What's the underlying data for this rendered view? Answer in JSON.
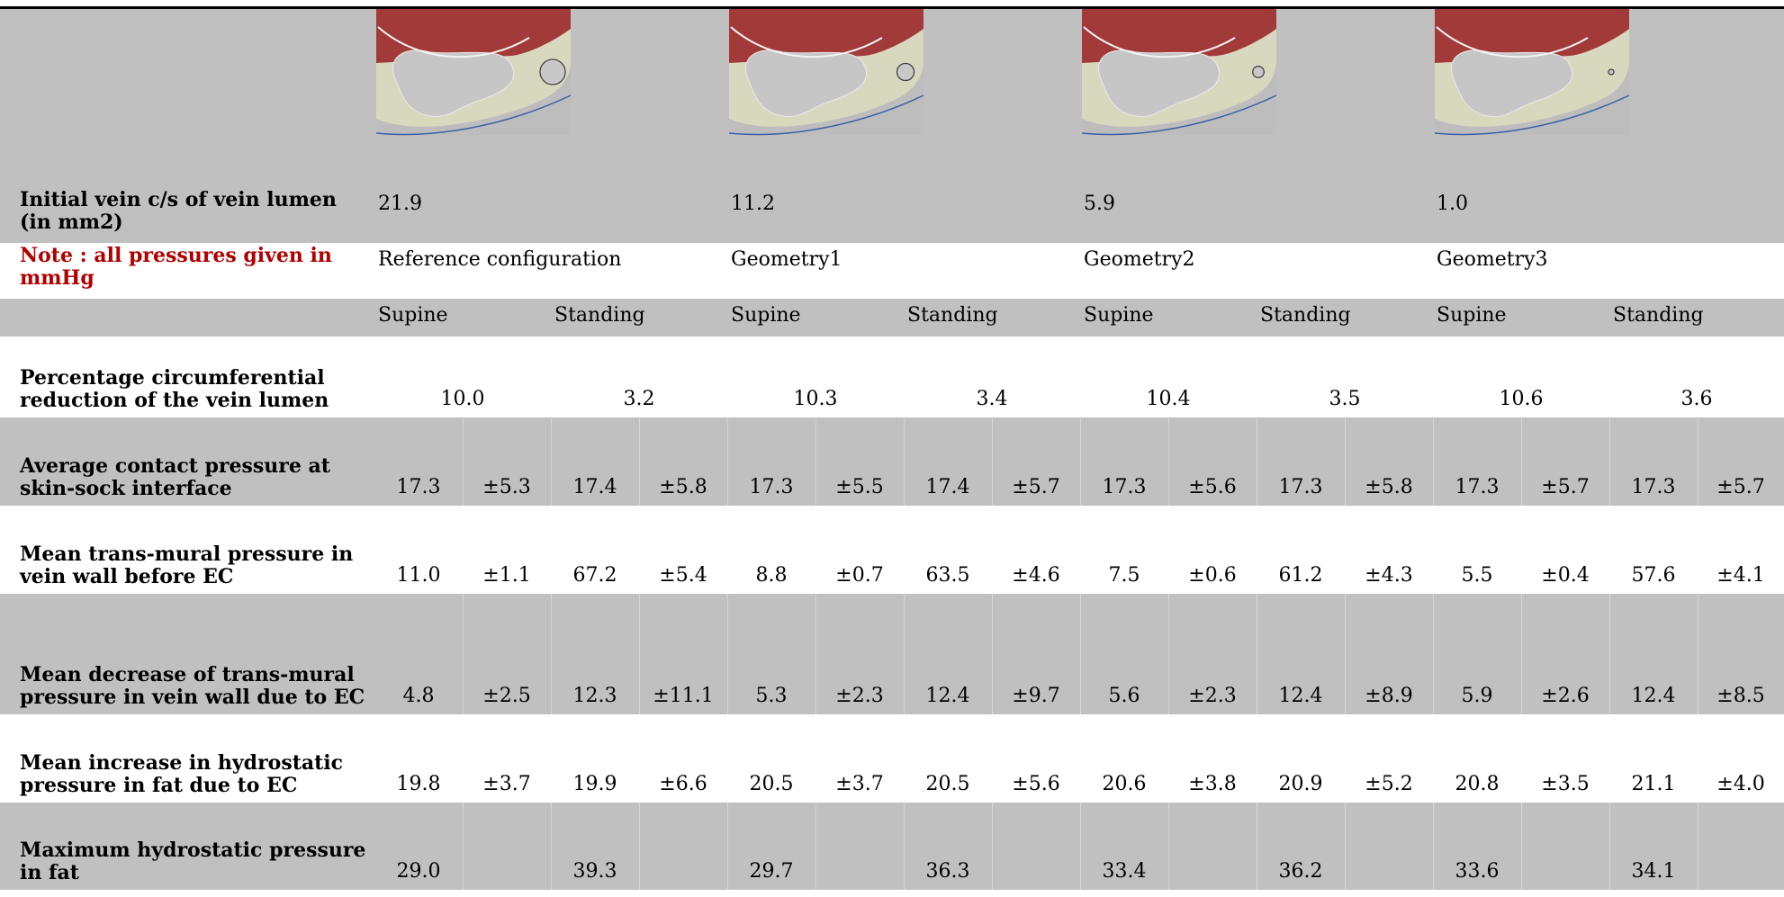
{
  "row_area": {
    "label": "Initial vein c/s of vein lumen (in mm2)",
    "values": [
      "21.9",
      "11.2",
      "5.9",
      "1.0"
    ]
  },
  "row_config": {
    "note": "Note : all pressures given in mmHg",
    "names": [
      "Reference configuration",
      "Geometry1",
      "Geometry2",
      "Geometry3"
    ]
  },
  "row_posture": {
    "supine": "Supine",
    "standing": "Standing"
  },
  "row_circ": {
    "label": "Percentage circumferential reduction of the vein lumen",
    "values": [
      "10.0",
      "3.2",
      "10.3",
      "3.4",
      "10.4",
      "3.5",
      "10.6",
      "3.6"
    ]
  },
  "row_contact": {
    "label": "Average contact pressure at skin-sock interface",
    "values": [
      "17.3",
      "±5.3",
      "17.4",
      "±5.8",
      "17.3",
      "±5.5",
      "17.4",
      "±5.7",
      "17.3",
      "±5.6",
      "17.3",
      "±5.8",
      "17.3",
      "±5.7",
      "17.3",
      "±5.7"
    ]
  },
  "row_transmural": {
    "label": "Mean trans-mural pressure in vein wall before EC",
    "values": [
      "11.0",
      "±1.1",
      "67.2",
      "±5.4",
      "8.8",
      "±0.7",
      "63.5",
      "±4.6",
      "7.5",
      "±0.6",
      "61.2",
      "±4.3",
      "5.5",
      "±0.4",
      "57.6",
      "±4.1"
    ]
  },
  "row_decrease": {
    "label": "Mean decrease of trans-mural pressure in vein wall due to EC",
    "values": [
      "4.8",
      "±2.5",
      "12.3",
      "±11.1",
      "5.3",
      "±2.3",
      "12.4",
      "±9.7",
      "5.6",
      "±2.3",
      "12.4",
      "±8.9",
      "5.9",
      "±2.6",
      "12.4",
      "±8.5"
    ]
  },
  "row_hydro_inc": {
    "label": "Mean increase in hydrostatic pressure in fat due to EC",
    "values": [
      "19.8",
      "±3.7",
      "19.9",
      "±6.6",
      "20.5",
      "±3.7",
      "20.5",
      "±5.6",
      "20.6",
      "±3.8",
      "20.9",
      "±5.2",
      "20.8",
      "±3.5",
      "21.1",
      "±4.0"
    ]
  },
  "row_hydro_max": {
    "label": "Maximum hydrostatic pressure in fat",
    "values": [
      "29.0",
      "",
      "39.3",
      "",
      "29.7",
      "",
      "36.3",
      "",
      "33.4",
      "",
      "36.2",
      "",
      "33.6",
      "",
      "34.1",
      ""
    ]
  },
  "images": [
    {
      "name": "reference-geometry-image",
      "vein_radius": 1
    },
    {
      "name": "geometry1-image",
      "vein_radius": 0.68
    },
    {
      "name": "geometry2-image",
      "vein_radius": 0.45
    },
    {
      "name": "geometry3-image",
      "vein_radius": 0.2
    }
  ],
  "colors": {
    "row_gray": "#c0c0c0",
    "muscle": "#a33a3a",
    "fat": "#d8d8bf",
    "note_red": "#b00000"
  }
}
